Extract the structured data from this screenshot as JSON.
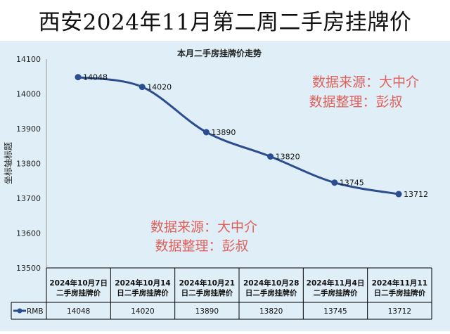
{
  "page": {
    "title": "西安2024年11月第二周二手房挂牌价"
  },
  "watermark": {
    "line1": "数据来源：大中介",
    "line2": "数据整理：彭叔",
    "color": "#e0605a"
  },
  "chart_data": {
    "type": "line",
    "title": "本月二手房挂牌价走势",
    "ylabel": "坐标轴标题",
    "xlabel": "",
    "ylim": [
      13500,
      14100
    ],
    "yticks": [
      13500,
      13600,
      13700,
      13800,
      13900,
      14000,
      14100
    ],
    "grid": false,
    "legend": "bottom-left (inside data table)",
    "categories": [
      "2024年10月7日二手房挂牌价",
      "2024年10月14日二手房挂牌价",
      "2024年10月21日二手房挂牌价",
      "2024年10月28日二手房挂牌价",
      "2024年11月4日二手房挂牌价",
      "2024年11月11日二手房挂牌价"
    ],
    "category_lines": [
      [
        "2024年10月7日",
        "二手房挂牌价"
      ],
      [
        "2024年10月14",
        "日二手房挂牌价"
      ],
      [
        "2024年10月21",
        "日二手房挂牌价"
      ],
      [
        "2024年10月28",
        "日二手房挂牌价"
      ],
      [
        "2024年11月4日",
        "二手房挂牌价"
      ],
      [
        "2024年11月11",
        "日二手房挂牌价"
      ]
    ],
    "series": [
      {
        "name": "RMB",
        "color": "#2c4d8e",
        "values": [
          14048,
          14020,
          13890,
          13820,
          13745,
          13712
        ]
      }
    ],
    "data_labels": [
      "14048",
      "14020",
      "13890",
      "13820",
      "13745",
      "13712"
    ]
  }
}
